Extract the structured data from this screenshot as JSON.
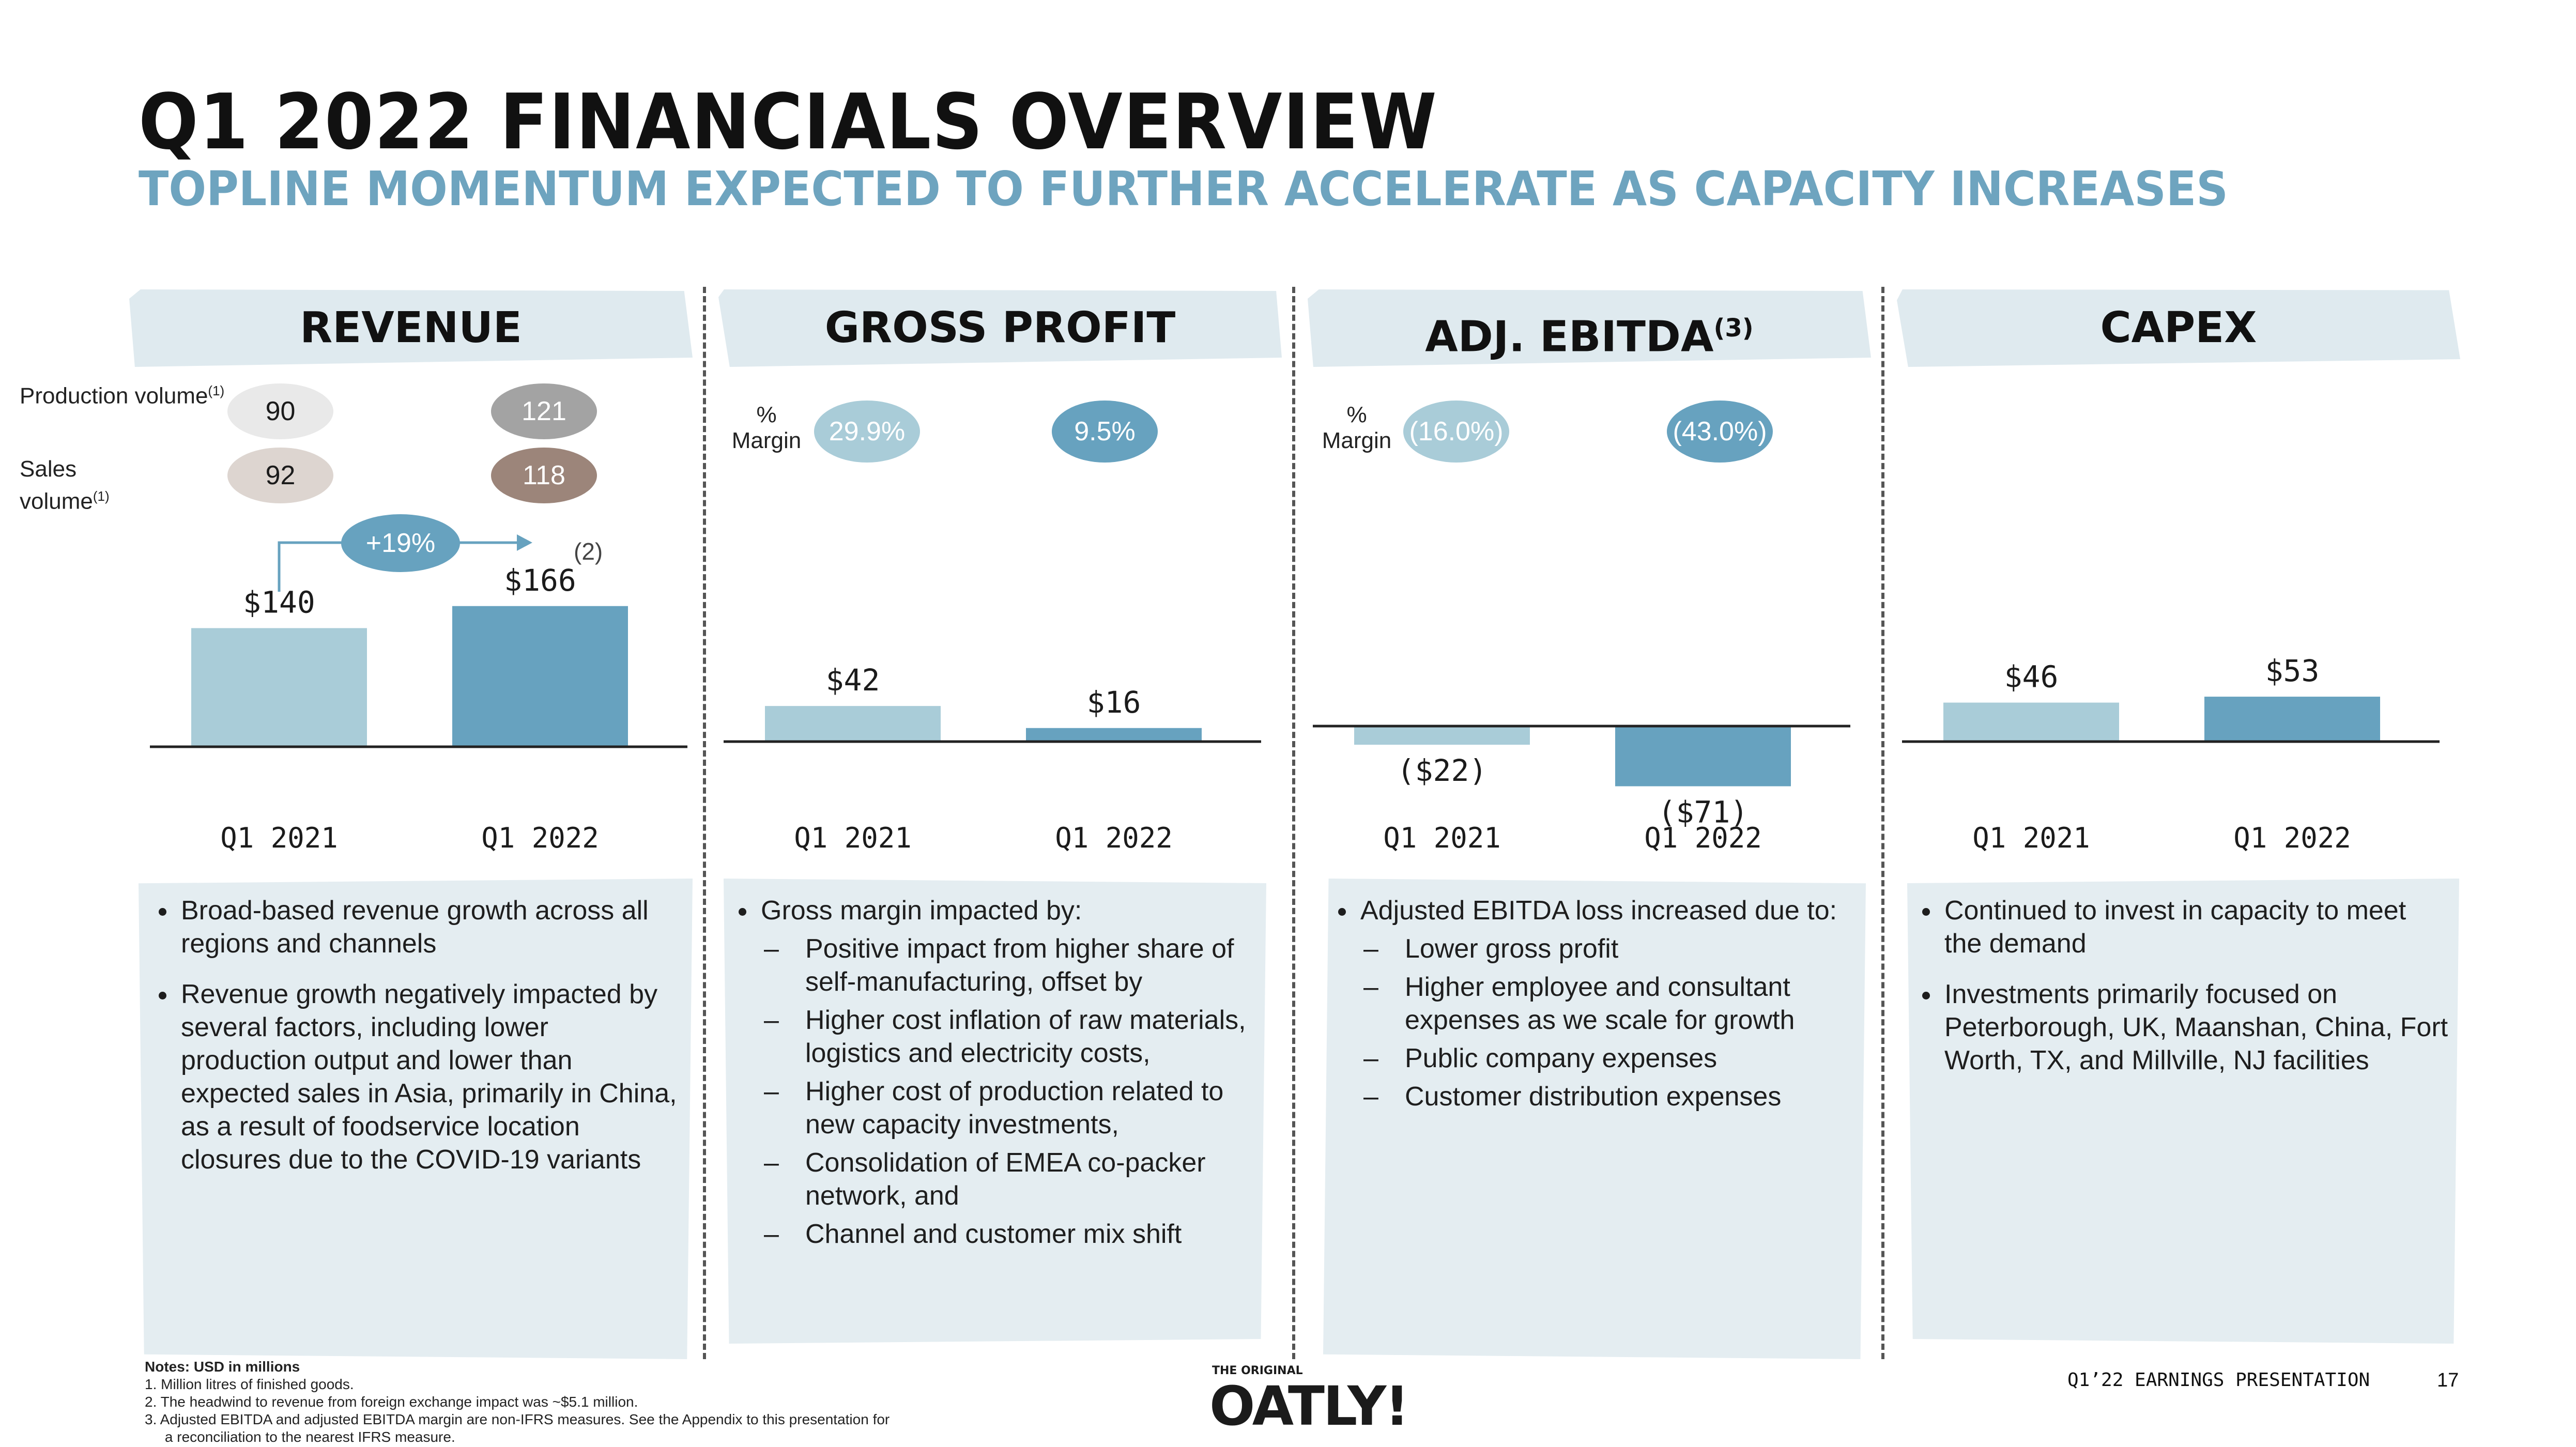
{
  "header": {
    "title": "Q1 2022 FINANCIALS OVERVIEW",
    "subtitle": "TOPLINE MOMENTUM EXPECTED TO FURTHER ACCELERATE AS CAPACITY INCREASES"
  },
  "row_labels": {
    "production_volume": "Production volume",
    "production_sup": "(1)",
    "sales_volume": "Sales volume",
    "sales_sup": "(1)"
  },
  "panels": {
    "revenue": {
      "title": "REVENUE",
      "production_volume": [
        "90",
        "121"
      ],
      "sales_volume": [
        "92",
        "118"
      ],
      "growth": "+19%",
      "footnote_ref": "(2)",
      "bullets": [
        "Broad-based revenue growth across all regions and channels",
        "Revenue growth negatively impacted by several factors, including lower production output and lower than expected sales in Asia, primarily in China, as a result of foodservice location closures due to the COVID-19 variants"
      ]
    },
    "gross_profit": {
      "title": "GROSS PROFIT",
      "margin_label": "% Margin",
      "margins": [
        "29.9%",
        "9.5%"
      ],
      "bullet_intro": "Gross margin impacted by:",
      "sub_bullets": [
        "Positive impact from higher share of self-manufacturing, offset by",
        "Higher cost inflation of raw materials, logistics and electricity costs,",
        "Higher cost of production related to new capacity investments,",
        "Consolidation of EMEA co-packer network, and",
        "Channel and customer mix shift"
      ]
    },
    "adj_ebitda": {
      "title": "ADJ. EBITDA",
      "title_sup": "(3)",
      "margin_label": "% Margin",
      "margins": [
        "(16.0%)",
        "(43.0%)"
      ],
      "bullet_intro": "Adjusted EBITDA loss increased due to:",
      "sub_bullets": [
        "Lower gross profit",
        "Higher employee and consultant expenses as we scale for growth",
        "Public company expenses",
        "Customer distribution expenses"
      ]
    },
    "capex": {
      "title": "CAPEX",
      "bullets": [
        "Continued to invest in capacity to meet the demand",
        "Investments primarily focused on Peterborough, UK, Maanshan, China, Fort Worth, TX, and Millville, NJ facilities"
      ]
    }
  },
  "chart_data": [
    {
      "type": "bar",
      "title": "REVENUE",
      "categories": [
        "Q1 2021",
        "Q1 2022"
      ],
      "values": [
        140,
        166
      ],
      "labels": [
        "$140",
        "$166"
      ],
      "colors": [
        "#a9ccd8",
        "#67a2bf"
      ],
      "ylim": [
        0,
        180
      ]
    },
    {
      "type": "bar",
      "title": "GROSS PROFIT",
      "categories": [
        "Q1 2021",
        "Q1 2022"
      ],
      "values": [
        42,
        16
      ],
      "labels": [
        "$42",
        "$16"
      ],
      "colors": [
        "#a9ccd8",
        "#67a2bf"
      ],
      "ylim": [
        0,
        180
      ]
    },
    {
      "type": "bar",
      "title": "ADJ. EBITDA",
      "categories": [
        "Q1 2021",
        "Q1 2022"
      ],
      "values": [
        -22,
        -71
      ],
      "labels": [
        "($22)",
        "($71)"
      ],
      "colors": [
        "#a9ccd8",
        "#67a2bf"
      ],
      "ylim": [
        -80,
        180
      ]
    },
    {
      "type": "bar",
      "title": "CAPEX",
      "categories": [
        "Q1 2021",
        "Q1 2022"
      ],
      "values": [
        46,
        53
      ],
      "labels": [
        "$46",
        "$53"
      ],
      "colors": [
        "#a9ccd8",
        "#67a2bf"
      ],
      "ylim": [
        0,
        180
      ]
    }
  ],
  "notes": {
    "heading": "Notes: USD in millions",
    "items": [
      "1.  Million litres of finished goods.",
      "2.  The headwind to revenue from foreign exchange impact was ~$5.1 million.",
      "3.  Adjusted EBITDA and adjusted EBITDA margin are non-IFRS measures. See the Appendix to this presentation for",
      "     a reconciliation to the nearest IFRS measure."
    ]
  },
  "footer": {
    "logo_small": "THE ORIGINAL",
    "logo": "OATLY!",
    "presentation": "Q1’22 EARNINGS PRESENTATION",
    "page": "17"
  },
  "colors": {
    "light_bar": "#a9ccd8",
    "dark_bar": "#67a2bf",
    "banner": "#dfeaef",
    "subtitle": "#6ea4bf"
  }
}
